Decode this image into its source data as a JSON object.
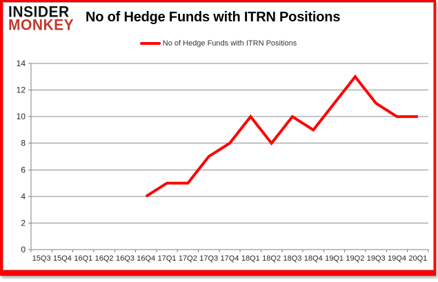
{
  "logo": {
    "line1": "INSIDER",
    "line2": "MONKEY"
  },
  "title": "No of Hedge Funds with ITRN Positions",
  "legend": {
    "label": "No of Hedge Funds with ITRN Positions",
    "color": "#fe0000"
  },
  "colors": {
    "frame": "#fe0000",
    "line": "#fe0000",
    "grid": "#8e8e8e",
    "axis": "#7f7f7f",
    "tick_text": "#262626",
    "logo_monkey": "#c0392b"
  },
  "chart_data": {
    "type": "line",
    "categories": [
      "15Q3",
      "15Q4",
      "16Q1",
      "16Q2",
      "16Q3",
      "16Q4",
      "17Q1",
      "17Q2",
      "17Q3",
      "17Q4",
      "18Q1",
      "18Q2",
      "18Q3",
      "18Q4",
      "19Q1",
      "19Q2",
      "19Q3",
      "19Q4",
      "20Q1"
    ],
    "series": [
      {
        "name": "No of Hedge Funds with ITRN Positions",
        "color": "#fe0000",
        "values": [
          null,
          null,
          null,
          null,
          null,
          4,
          5,
          5,
          7,
          8,
          10,
          8,
          10,
          9,
          11,
          13,
          11,
          10,
          10
        ]
      }
    ],
    "title": "No of Hedge Funds with ITRN Positions",
    "xlabel": "",
    "ylabel": "",
    "ylim": [
      0,
      14
    ],
    "ytick_interval": 2,
    "grid": true,
    "legend_position": "top"
  }
}
